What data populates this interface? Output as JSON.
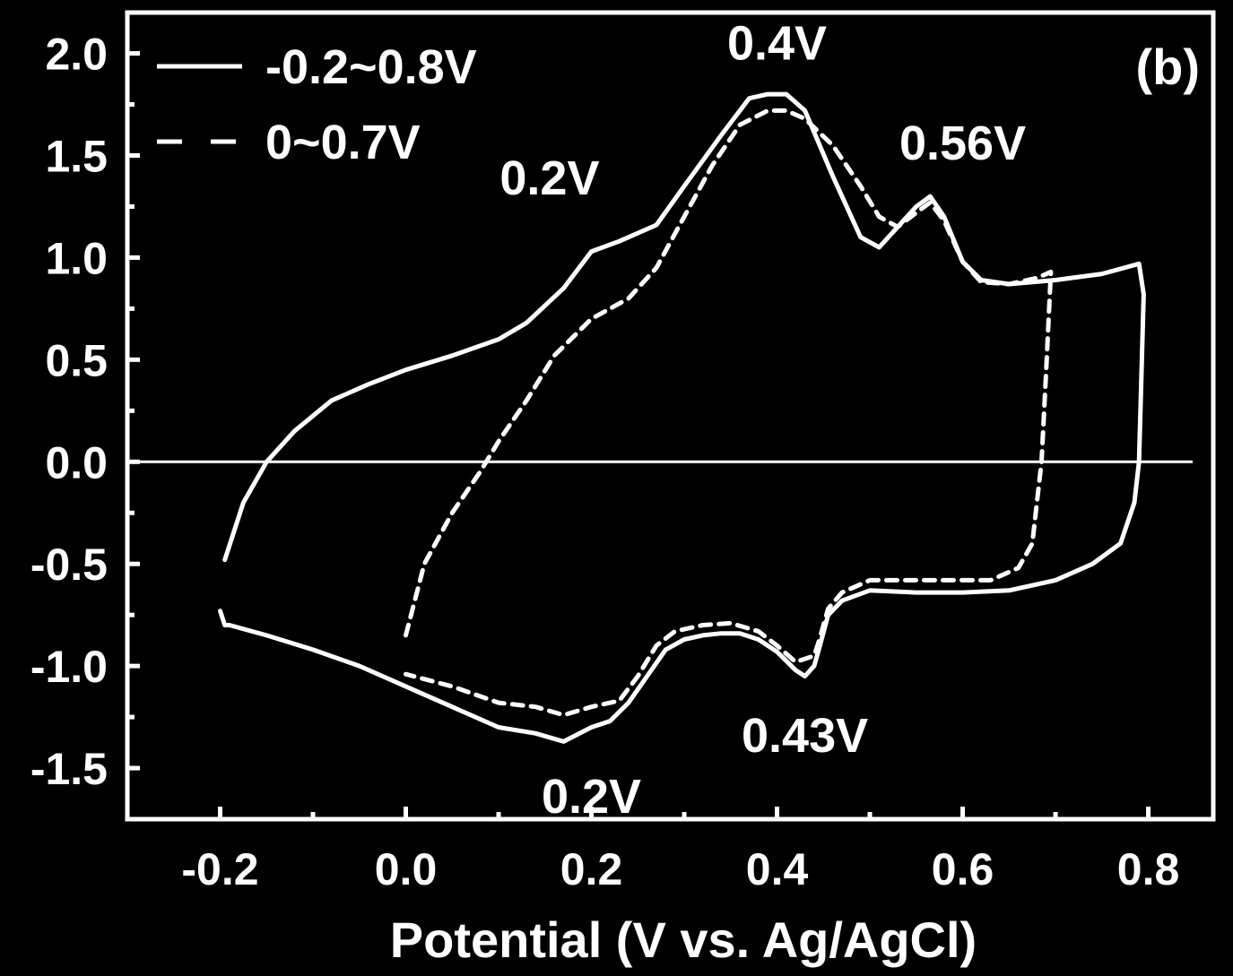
{
  "chart_data": {
    "type": "line",
    "panel_label": "(b)",
    "xlabel": "Potential (V vs. Ag/AgCl)",
    "ylabel": "",
    "xlim": [
      -0.3,
      0.87
    ],
    "ylim": [
      -1.75,
      2.2
    ],
    "x_ticks": [
      "-0.2",
      "0.0",
      "0.2",
      "0.4",
      "0.6",
      "0.8"
    ],
    "x_tick_values": [
      -0.2,
      0.0,
      0.2,
      0.4,
      0.6,
      0.8
    ],
    "y_ticks": [
      "2.0",
      "1.5",
      "1.0",
      "0.5",
      "0.0",
      "-0.5",
      "-1.0",
      "-1.5"
    ],
    "y_tick_values": [
      2.0,
      1.5,
      1.0,
      0.5,
      0.0,
      -0.5,
      -1.0,
      -1.5
    ],
    "zero_line": true,
    "grid": false,
    "legend_position": "top-left",
    "series": [
      {
        "name": "-0.2~0.8V",
        "style": "solid",
        "x": [
          -0.195,
          -0.175,
          -0.15,
          -0.12,
          -0.08,
          -0.04,
          0.0,
          0.05,
          0.1,
          0.13,
          0.17,
          0.2,
          0.23,
          0.27,
          0.3,
          0.34,
          0.37,
          0.39,
          0.41,
          0.43,
          0.46,
          0.49,
          0.51,
          0.53,
          0.55,
          0.565,
          0.58,
          0.6,
          0.62,
          0.65,
          0.7,
          0.75,
          0.79,
          0.795,
          0.79,
          0.785,
          0.77,
          0.74,
          0.7,
          0.65,
          0.6,
          0.55,
          0.5,
          0.47,
          0.455,
          0.445,
          0.44,
          0.43,
          0.42,
          0.4,
          0.38,
          0.36,
          0.34,
          0.32,
          0.3,
          0.28,
          0.26,
          0.24,
          0.22,
          0.2,
          0.17,
          0.14,
          0.1,
          0.05,
          0.0,
          -0.05,
          -0.1,
          -0.15,
          -0.19,
          -0.195,
          -0.2
        ],
        "y": [
          -0.48,
          -0.2,
          0.0,
          0.15,
          0.3,
          0.38,
          0.45,
          0.52,
          0.6,
          0.68,
          0.85,
          1.03,
          1.08,
          1.16,
          1.35,
          1.6,
          1.78,
          1.8,
          1.8,
          1.72,
          1.4,
          1.1,
          1.05,
          1.15,
          1.25,
          1.3,
          1.2,
          0.98,
          0.89,
          0.87,
          0.89,
          0.92,
          0.97,
          0.82,
          0.0,
          -0.2,
          -0.4,
          -0.5,
          -0.58,
          -0.63,
          -0.64,
          -0.64,
          -0.63,
          -0.68,
          -0.75,
          -0.92,
          -1.0,
          -1.05,
          -1.02,
          -0.93,
          -0.87,
          -0.84,
          -0.84,
          -0.85,
          -0.87,
          -0.92,
          -1.05,
          -1.18,
          -1.27,
          -1.3,
          -1.37,
          -1.33,
          -1.3,
          -1.2,
          -1.1,
          -1.0,
          -0.92,
          -0.85,
          -0.8,
          -0.8,
          -0.73
        ]
      },
      {
        "name": "0~0.7V",
        "style": "dashed",
        "x": [
          0.0,
          0.02,
          0.05,
          0.08,
          0.1,
          0.13,
          0.16,
          0.2,
          0.24,
          0.27,
          0.3,
          0.33,
          0.36,
          0.39,
          0.41,
          0.43,
          0.46,
          0.49,
          0.51,
          0.53,
          0.55,
          0.565,
          0.58,
          0.6,
          0.62,
          0.65,
          0.68,
          0.695,
          0.69,
          0.685,
          0.68,
          0.675,
          0.66,
          0.63,
          0.6,
          0.55,
          0.5,
          0.47,
          0.455,
          0.445,
          0.44,
          0.42,
          0.4,
          0.38,
          0.35,
          0.32,
          0.29,
          0.27,
          0.25,
          0.23,
          0.2,
          0.17,
          0.14,
          0.1,
          0.05,
          0.0
        ],
        "y": [
          -0.85,
          -0.5,
          -0.25,
          -0.05,
          0.1,
          0.3,
          0.52,
          0.7,
          0.8,
          0.95,
          1.2,
          1.45,
          1.65,
          1.72,
          1.72,
          1.68,
          1.55,
          1.35,
          1.2,
          1.15,
          1.22,
          1.27,
          1.18,
          0.98,
          0.88,
          0.87,
          0.9,
          0.93,
          0.45,
          0.0,
          -0.2,
          -0.4,
          -0.52,
          -0.58,
          -0.58,
          -0.58,
          -0.58,
          -0.64,
          -0.72,
          -0.88,
          -0.95,
          -0.98,
          -0.9,
          -0.83,
          -0.79,
          -0.8,
          -0.83,
          -0.9,
          -1.05,
          -1.17,
          -1.2,
          -1.24,
          -1.2,
          -1.18,
          -1.1,
          -1.04
        ]
      }
    ],
    "annotations": [
      {
        "text": "0.4V",
        "x": 0.4,
        "y": 1.97
      },
      {
        "text": "0.2V",
        "x": 0.155,
        "y": 1.31
      },
      {
        "text": "0.56V",
        "x": 0.6,
        "y": 1.48
      },
      {
        "text": "0.43V",
        "x": 0.43,
        "y": -1.42
      },
      {
        "text": "0.2V",
        "x": 0.2,
        "y": -1.72
      }
    ]
  }
}
